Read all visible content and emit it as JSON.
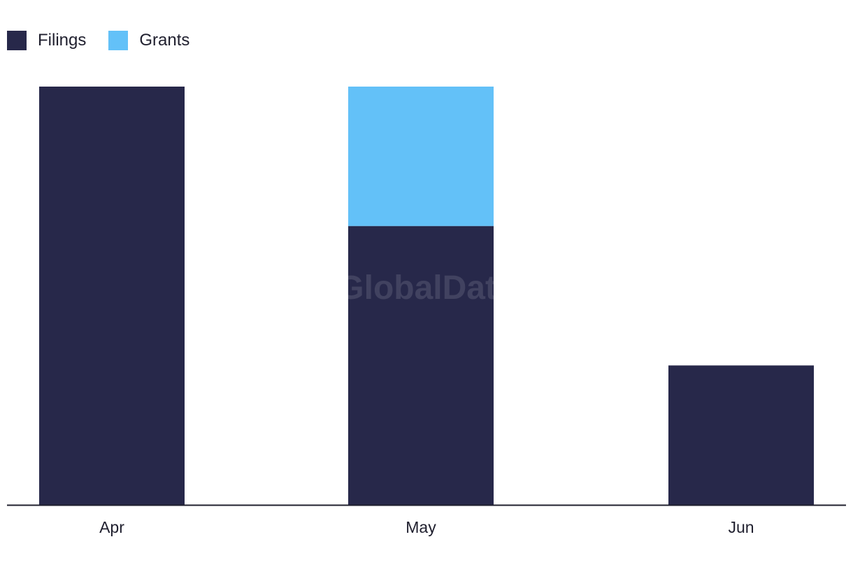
{
  "legend": [
    {
      "label": "Filings",
      "color": "#27284a"
    },
    {
      "label": "Grants",
      "color": "#63c1f8"
    }
  ],
  "watermark": "GlobalData",
  "chart_data": {
    "type": "bar",
    "stacked": true,
    "categories": [
      "Apr",
      "May",
      "Jun"
    ],
    "series": [
      {
        "name": "Filings",
        "values": [
          3,
          2,
          1
        ],
        "color": "#27284a"
      },
      {
        "name": "Grants",
        "values": [
          0,
          1,
          0
        ],
        "color": "#63c1f8"
      }
    ],
    "title": "",
    "xlabel": "",
    "ylabel": "",
    "ylim": [
      0,
      3
    ],
    "grid": false,
    "legend_position": "top-left"
  }
}
